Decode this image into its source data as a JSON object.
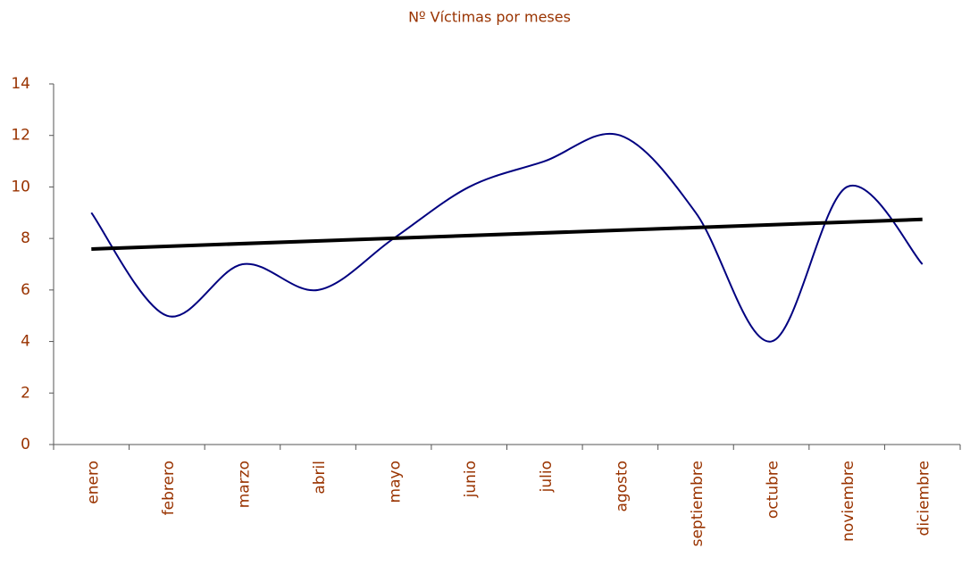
{
  "chart_data": {
    "type": "line",
    "title": "Nº Víctimas por meses",
    "categories": [
      "enero",
      "febrero",
      "marzo",
      "abril",
      "mayo",
      "junio",
      "julio",
      "agosto",
      "septiembre",
      "octubre",
      "noviembre",
      "diciembre"
    ],
    "series": [
      {
        "color": "#000080",
        "values": [
          9,
          5,
          7,
          6,
          8,
          10,
          11,
          12,
          9,
          4,
          10,
          7
        ]
      }
    ],
    "trendline": {
      "color": "#000000",
      "values": [
        7.59,
        8.74
      ]
    },
    "smooth": true,
    "ylim": [
      0,
      14
    ],
    "yticks": [
      0,
      2,
      4,
      6,
      8,
      10,
      12,
      14
    ],
    "grid": false
  }
}
